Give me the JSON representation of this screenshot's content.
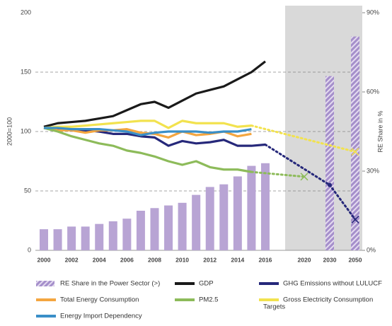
{
  "chart_data": {
    "type": "combo",
    "y_label": "2000=100",
    "y2_label": "RE Share in %",
    "targets_label": "Targets",
    "categories": [
      "2000",
      null,
      "2002",
      null,
      "2004",
      null,
      "2006",
      null,
      "2008",
      null,
      "2010",
      null,
      "2012",
      null,
      "2014",
      null,
      "2016",
      "2020",
      "2030",
      "2050"
    ],
    "ylim": [
      0,
      200
    ],
    "yticks": [
      0,
      50,
      100,
      150,
      200
    ],
    "y2lim": [
      0,
      90
    ],
    "y2ticks": [
      {
        "value": 0,
        "label": "0%"
      },
      {
        "value": 30,
        "label": "30%"
      },
      {
        "value": 60,
        "label": "60%"
      },
      {
        "value": 90,
        "label": "90%"
      }
    ],
    "grid": true,
    "series": [
      {
        "name": "RE Share in the Power Sector (>)",
        "type": "bar",
        "axis": "y2",
        "color": "#b8a4d4",
        "values": [
          8,
          8,
          9,
          9,
          10,
          11,
          12,
          15,
          16,
          17,
          18,
          21,
          24,
          25,
          28,
          32,
          33,
          null,
          66,
          81
        ]
      },
      {
        "name": "GDP",
        "type": "line",
        "color": "#1a1a1a",
        "values": [
          104,
          107,
          108,
          109,
          111,
          113,
          118,
          123,
          125,
          120,
          126,
          132,
          135,
          138,
          144,
          150,
          159,
          null,
          null,
          null
        ]
      },
      {
        "name": "GHG Emissions without LULUCF",
        "type": "line",
        "color": "#26287a",
        "values": [
          103,
          102,
          101,
          101,
          100,
          98,
          98,
          96,
          95,
          88,
          92,
          90,
          91,
          93,
          88,
          88,
          89,
          null,
          null,
          null
        ],
        "target_values": [
          null,
          null,
          null,
          null,
          null,
          null,
          null,
          null,
          null,
          null,
          null,
          null,
          null,
          null,
          null,
          null,
          null,
          null,
          55,
          26
        ]
      },
      {
        "name": "Total Energy Consumption",
        "type": "line",
        "color": "#f4a640",
        "values": [
          103,
          101,
          101,
          99,
          101,
          101,
          102,
          99,
          98,
          95,
          100,
          97,
          98,
          100,
          96,
          98,
          null,
          null,
          null,
          null
        ]
      },
      {
        "name": "PM2.5",
        "type": "line",
        "color": "#8dbb5a",
        "values": [
          103,
          100,
          96,
          93,
          90,
          88,
          84,
          82,
          79,
          75,
          72,
          75,
          70,
          68,
          68,
          66,
          null,
          null,
          null,
          null
        ],
        "target_values": [
          null,
          null,
          null,
          null,
          null,
          null,
          null,
          null,
          null,
          null,
          null,
          null,
          null,
          null,
          null,
          null,
          null,
          62,
          null,
          null
        ]
      },
      {
        "name": "Gross Electricity Consumption",
        "type": "line",
        "color": "#f2e24e",
        "values": [
          103,
          104,
          104,
          105,
          106,
          107,
          108,
          109,
          109,
          103,
          109,
          107,
          107,
          107,
          104,
          105,
          null,
          null,
          null,
          null
        ],
        "target_values": [
          null,
          null,
          null,
          null,
          null,
          null,
          null,
          null,
          null,
          null,
          null,
          null,
          null,
          null,
          null,
          null,
          null,
          null,
          null,
          83
        ]
      },
      {
        "name": "Energy Import Dependency",
        "type": "line",
        "color": "#3a8fc8",
        "values": [
          103,
          103,
          102,
          102,
          102,
          101,
          100,
          97,
          99,
          100,
          100,
          100,
          99,
          100,
          100,
          102,
          null,
          null,
          null,
          null
        ]
      }
    ]
  }
}
